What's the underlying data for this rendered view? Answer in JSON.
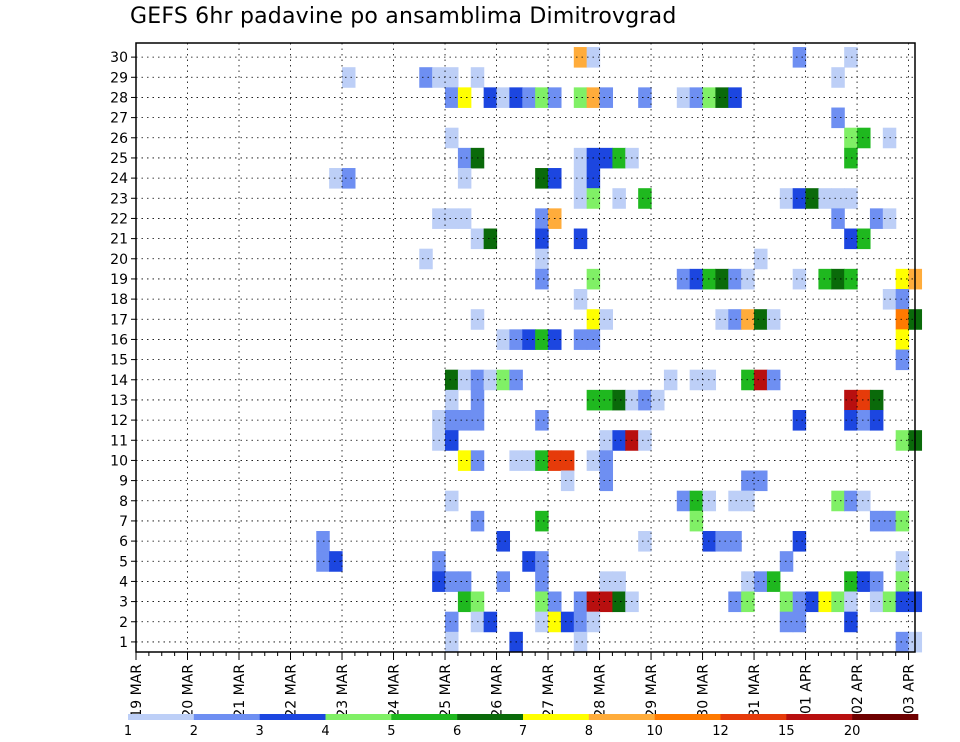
{
  "chart_data": {
    "type": "heatmap",
    "title": "GEFS 6hr padavine po ansamblima Dimitrovgrad",
    "x_tick_labels": [
      "19 MAR",
      "20 MAR",
      "21 MAR",
      "22 MAR",
      "23 MAR",
      "24 MAR",
      "25 MAR",
      "26 MAR",
      "27 MAR",
      "28 MAR",
      "29 MAR",
      "30 MAR",
      "31 MAR",
      "01 APR",
      "02 APR",
      "03 APR"
    ],
    "y_tick_labels": [
      "1",
      "2",
      "3",
      "4",
      "5",
      "6",
      "7",
      "8",
      "9",
      "10",
      "11",
      "12",
      "13",
      "14",
      "15",
      "16",
      "17",
      "18",
      "19",
      "20",
      "21",
      "22",
      "23",
      "24",
      "25",
      "26",
      "27",
      "28",
      "29",
      "30"
    ],
    "time_steps_per_day": 4,
    "grid": "dotted",
    "legend": {
      "placement": "bottom",
      "labels": [
        "1",
        "2",
        "3",
        "4",
        "5",
        "6",
        "7",
        "8",
        "10",
        "12",
        "15",
        "20"
      ],
      "colors": [
        "#bdcff7",
        "#6e8ff2",
        "#1c46e0",
        "#80f066",
        "#1fb81f",
        "#0a6a0a",
        "#ffff00",
        "#ffac3b",
        "#ff7a00",
        "#e63b0a",
        "#b80f0f",
        "#6e0000"
      ]
    },
    "cell_color_index": [
      {
        "member": 30,
        "cells": [
          [
            34,
            7
          ],
          [
            35,
            0
          ],
          [
            51,
            1
          ],
          [
            55,
            0
          ]
        ]
      },
      {
        "member": 29,
        "cells": [
          [
            16,
            0
          ],
          [
            22,
            1
          ],
          [
            23,
            0
          ],
          [
            24,
            0
          ],
          [
            26,
            0
          ],
          [
            54,
            0
          ]
        ]
      },
      {
        "member": 28,
        "cells": [
          [
            24,
            1
          ],
          [
            25,
            6
          ],
          [
            27,
            2
          ],
          [
            28,
            0
          ],
          [
            29,
            2
          ],
          [
            30,
            1
          ],
          [
            31,
            3
          ],
          [
            32,
            1
          ],
          [
            34,
            3
          ],
          [
            35,
            7
          ],
          [
            36,
            1
          ],
          [
            39,
            1
          ],
          [
            42,
            0
          ],
          [
            43,
            1
          ],
          [
            44,
            3
          ],
          [
            45,
            5
          ],
          [
            46,
            2
          ]
        ]
      },
      {
        "member": 27,
        "cells": [
          [
            54,
            1
          ]
        ]
      },
      {
        "member": 26,
        "cells": [
          [
            24,
            0
          ],
          [
            55,
            3
          ],
          [
            56,
            4
          ],
          [
            58,
            0
          ]
        ]
      },
      {
        "member": 25,
        "cells": [
          [
            25,
            1
          ],
          [
            26,
            5
          ],
          [
            34,
            0
          ],
          [
            35,
            2
          ],
          [
            36,
            2
          ],
          [
            37,
            4
          ],
          [
            38,
            0
          ],
          [
            55,
            4
          ]
        ]
      },
      {
        "member": 24,
        "cells": [
          [
            15,
            0
          ],
          [
            16,
            1
          ],
          [
            25,
            0
          ],
          [
            31,
            5
          ],
          [
            32,
            2
          ],
          [
            34,
            0
          ],
          [
            35,
            2
          ]
        ]
      },
      {
        "member": 23,
        "cells": [
          [
            34,
            0
          ],
          [
            35,
            3
          ],
          [
            37,
            0
          ],
          [
            39,
            4
          ],
          [
            50,
            0
          ],
          [
            51,
            2
          ],
          [
            52,
            5
          ],
          [
            53,
            0
          ],
          [
            54,
            0
          ],
          [
            55,
            0
          ]
        ]
      },
      {
        "member": 22,
        "cells": [
          [
            23,
            0
          ],
          [
            24,
            0
          ],
          [
            25,
            0
          ],
          [
            31,
            1
          ],
          [
            32,
            7
          ],
          [
            54,
            1
          ],
          [
            57,
            1
          ],
          [
            58,
            0
          ]
        ]
      },
      {
        "member": 21,
        "cells": [
          [
            26,
            0
          ],
          [
            27,
            5
          ],
          [
            31,
            2
          ],
          [
            34,
            2
          ],
          [
            55,
            2
          ],
          [
            56,
            4
          ]
        ]
      },
      {
        "member": 20,
        "cells": [
          [
            22,
            0
          ],
          [
            31,
            0
          ],
          [
            48,
            0
          ]
        ]
      },
      {
        "member": 19,
        "cells": [
          [
            31,
            1
          ],
          [
            35,
            3
          ],
          [
            42,
            1
          ],
          [
            43,
            2
          ],
          [
            44,
            4
          ],
          [
            45,
            5
          ],
          [
            46,
            1
          ],
          [
            47,
            0
          ],
          [
            51,
            0
          ],
          [
            53,
            4
          ],
          [
            54,
            5
          ],
          [
            55,
            4
          ],
          [
            59,
            6
          ],
          [
            60,
            7
          ]
        ]
      },
      {
        "member": 18,
        "cells": [
          [
            34,
            0
          ],
          [
            58,
            0
          ],
          [
            59,
            1
          ]
        ]
      },
      {
        "member": 17,
        "cells": [
          [
            26,
            0
          ],
          [
            35,
            6
          ],
          [
            36,
            0
          ],
          [
            45,
            0
          ],
          [
            46,
            1
          ],
          [
            47,
            7
          ],
          [
            48,
            5
          ],
          [
            49,
            0
          ],
          [
            59,
            8
          ],
          [
            60,
            5
          ]
        ]
      },
      {
        "member": 16,
        "cells": [
          [
            28,
            0
          ],
          [
            29,
            1
          ],
          [
            30,
            2
          ],
          [
            31,
            4
          ],
          [
            32,
            2
          ],
          [
            34,
            1
          ],
          [
            35,
            1
          ],
          [
            59,
            6
          ]
        ]
      },
      {
        "member": 15,
        "cells": [
          [
            59,
            1
          ]
        ]
      },
      {
        "member": 14,
        "cells": [
          [
            24,
            5
          ],
          [
            25,
            0
          ],
          [
            26,
            1
          ],
          [
            27,
            0
          ],
          [
            28,
            3
          ],
          [
            29,
            1
          ],
          [
            41,
            0
          ],
          [
            43,
            0
          ],
          [
            44,
            0
          ],
          [
            47,
            4
          ],
          [
            48,
            10
          ],
          [
            49,
            1
          ]
        ]
      },
      {
        "member": 13,
        "cells": [
          [
            24,
            0
          ],
          [
            26,
            1
          ],
          [
            35,
            4
          ],
          [
            36,
            4
          ],
          [
            37,
            5
          ],
          [
            38,
            0
          ],
          [
            39,
            1
          ],
          [
            40,
            0
          ],
          [
            55,
            10
          ],
          [
            56,
            9
          ],
          [
            57,
            5
          ]
        ]
      },
      {
        "member": 12,
        "cells": [
          [
            23,
            0
          ],
          [
            24,
            1
          ],
          [
            25,
            1
          ],
          [
            26,
            1
          ],
          [
            31,
            1
          ],
          [
            51,
            2
          ],
          [
            55,
            2
          ],
          [
            56,
            1
          ],
          [
            57,
            2
          ]
        ]
      },
      {
        "member": 11,
        "cells": [
          [
            23,
            0
          ],
          [
            24,
            2
          ],
          [
            36,
            0
          ],
          [
            37,
            2
          ],
          [
            38,
            10
          ],
          [
            39,
            0
          ],
          [
            59,
            3
          ],
          [
            60,
            5
          ]
        ]
      },
      {
        "member": 10,
        "cells": [
          [
            25,
            6
          ],
          [
            26,
            1
          ],
          [
            29,
            0
          ],
          [
            30,
            0
          ],
          [
            31,
            4
          ],
          [
            32,
            9
          ],
          [
            33,
            9
          ],
          [
            35,
            0
          ],
          [
            36,
            1
          ]
        ]
      },
      {
        "member": 9,
        "cells": [
          [
            33,
            0
          ],
          [
            36,
            1
          ],
          [
            47,
            1
          ],
          [
            48,
            1
          ]
        ]
      },
      {
        "member": 8,
        "cells": [
          [
            24,
            0
          ],
          [
            42,
            1
          ],
          [
            43,
            4
          ],
          [
            44,
            0
          ],
          [
            46,
            0
          ],
          [
            47,
            0
          ],
          [
            54,
            3
          ],
          [
            55,
            1
          ],
          [
            56,
            0
          ]
        ]
      },
      {
        "member": 7,
        "cells": [
          [
            26,
            1
          ],
          [
            31,
            4
          ],
          [
            43,
            3
          ],
          [
            57,
            1
          ],
          [
            58,
            1
          ],
          [
            59,
            3
          ]
        ]
      },
      {
        "member": 6,
        "cells": [
          [
            14,
            1
          ],
          [
            28,
            2
          ],
          [
            39,
            0
          ],
          [
            44,
            2
          ],
          [
            45,
            1
          ],
          [
            46,
            1
          ],
          [
            51,
            2
          ]
        ]
      },
      {
        "member": 5,
        "cells": [
          [
            14,
            1
          ],
          [
            15,
            2
          ],
          [
            23,
            1
          ],
          [
            30,
            2
          ],
          [
            31,
            1
          ],
          [
            50,
            1
          ],
          [
            59,
            0
          ]
        ]
      },
      {
        "member": 4,
        "cells": [
          [
            23,
            2
          ],
          [
            24,
            1
          ],
          [
            25,
            1
          ],
          [
            28,
            1
          ],
          [
            31,
            1
          ],
          [
            36,
            0
          ],
          [
            37,
            0
          ],
          [
            47,
            0
          ],
          [
            48,
            1
          ],
          [
            49,
            4
          ],
          [
            55,
            4
          ],
          [
            56,
            2
          ],
          [
            57,
            1
          ],
          [
            59,
            3
          ]
        ]
      },
      {
        "member": 3,
        "cells": [
          [
            25,
            4
          ],
          [
            26,
            3
          ],
          [
            31,
            3
          ],
          [
            32,
            1
          ],
          [
            34,
            1
          ],
          [
            35,
            10
          ],
          [
            36,
            10
          ],
          [
            37,
            5
          ],
          [
            38,
            0
          ],
          [
            46,
            1
          ],
          [
            47,
            3
          ],
          [
            50,
            3
          ],
          [
            51,
            1
          ],
          [
            52,
            2
          ],
          [
            53,
            6
          ],
          [
            54,
            3
          ],
          [
            55,
            0
          ],
          [
            57,
            0
          ],
          [
            58,
            3
          ],
          [
            59,
            2
          ],
          [
            60,
            2
          ]
        ]
      },
      {
        "member": 2,
        "cells": [
          [
            24,
            1
          ],
          [
            26,
            0
          ],
          [
            27,
            2
          ],
          [
            31,
            0
          ],
          [
            32,
            6
          ],
          [
            33,
            2
          ],
          [
            34,
            1
          ],
          [
            35,
            0
          ],
          [
            50,
            1
          ],
          [
            51,
            1
          ],
          [
            55,
            2
          ]
        ]
      },
      {
        "member": 1,
        "cells": [
          [
            24,
            0
          ],
          [
            29,
            2
          ],
          [
            34,
            0
          ],
          [
            59,
            1
          ],
          [
            60,
            0
          ]
        ]
      }
    ]
  }
}
